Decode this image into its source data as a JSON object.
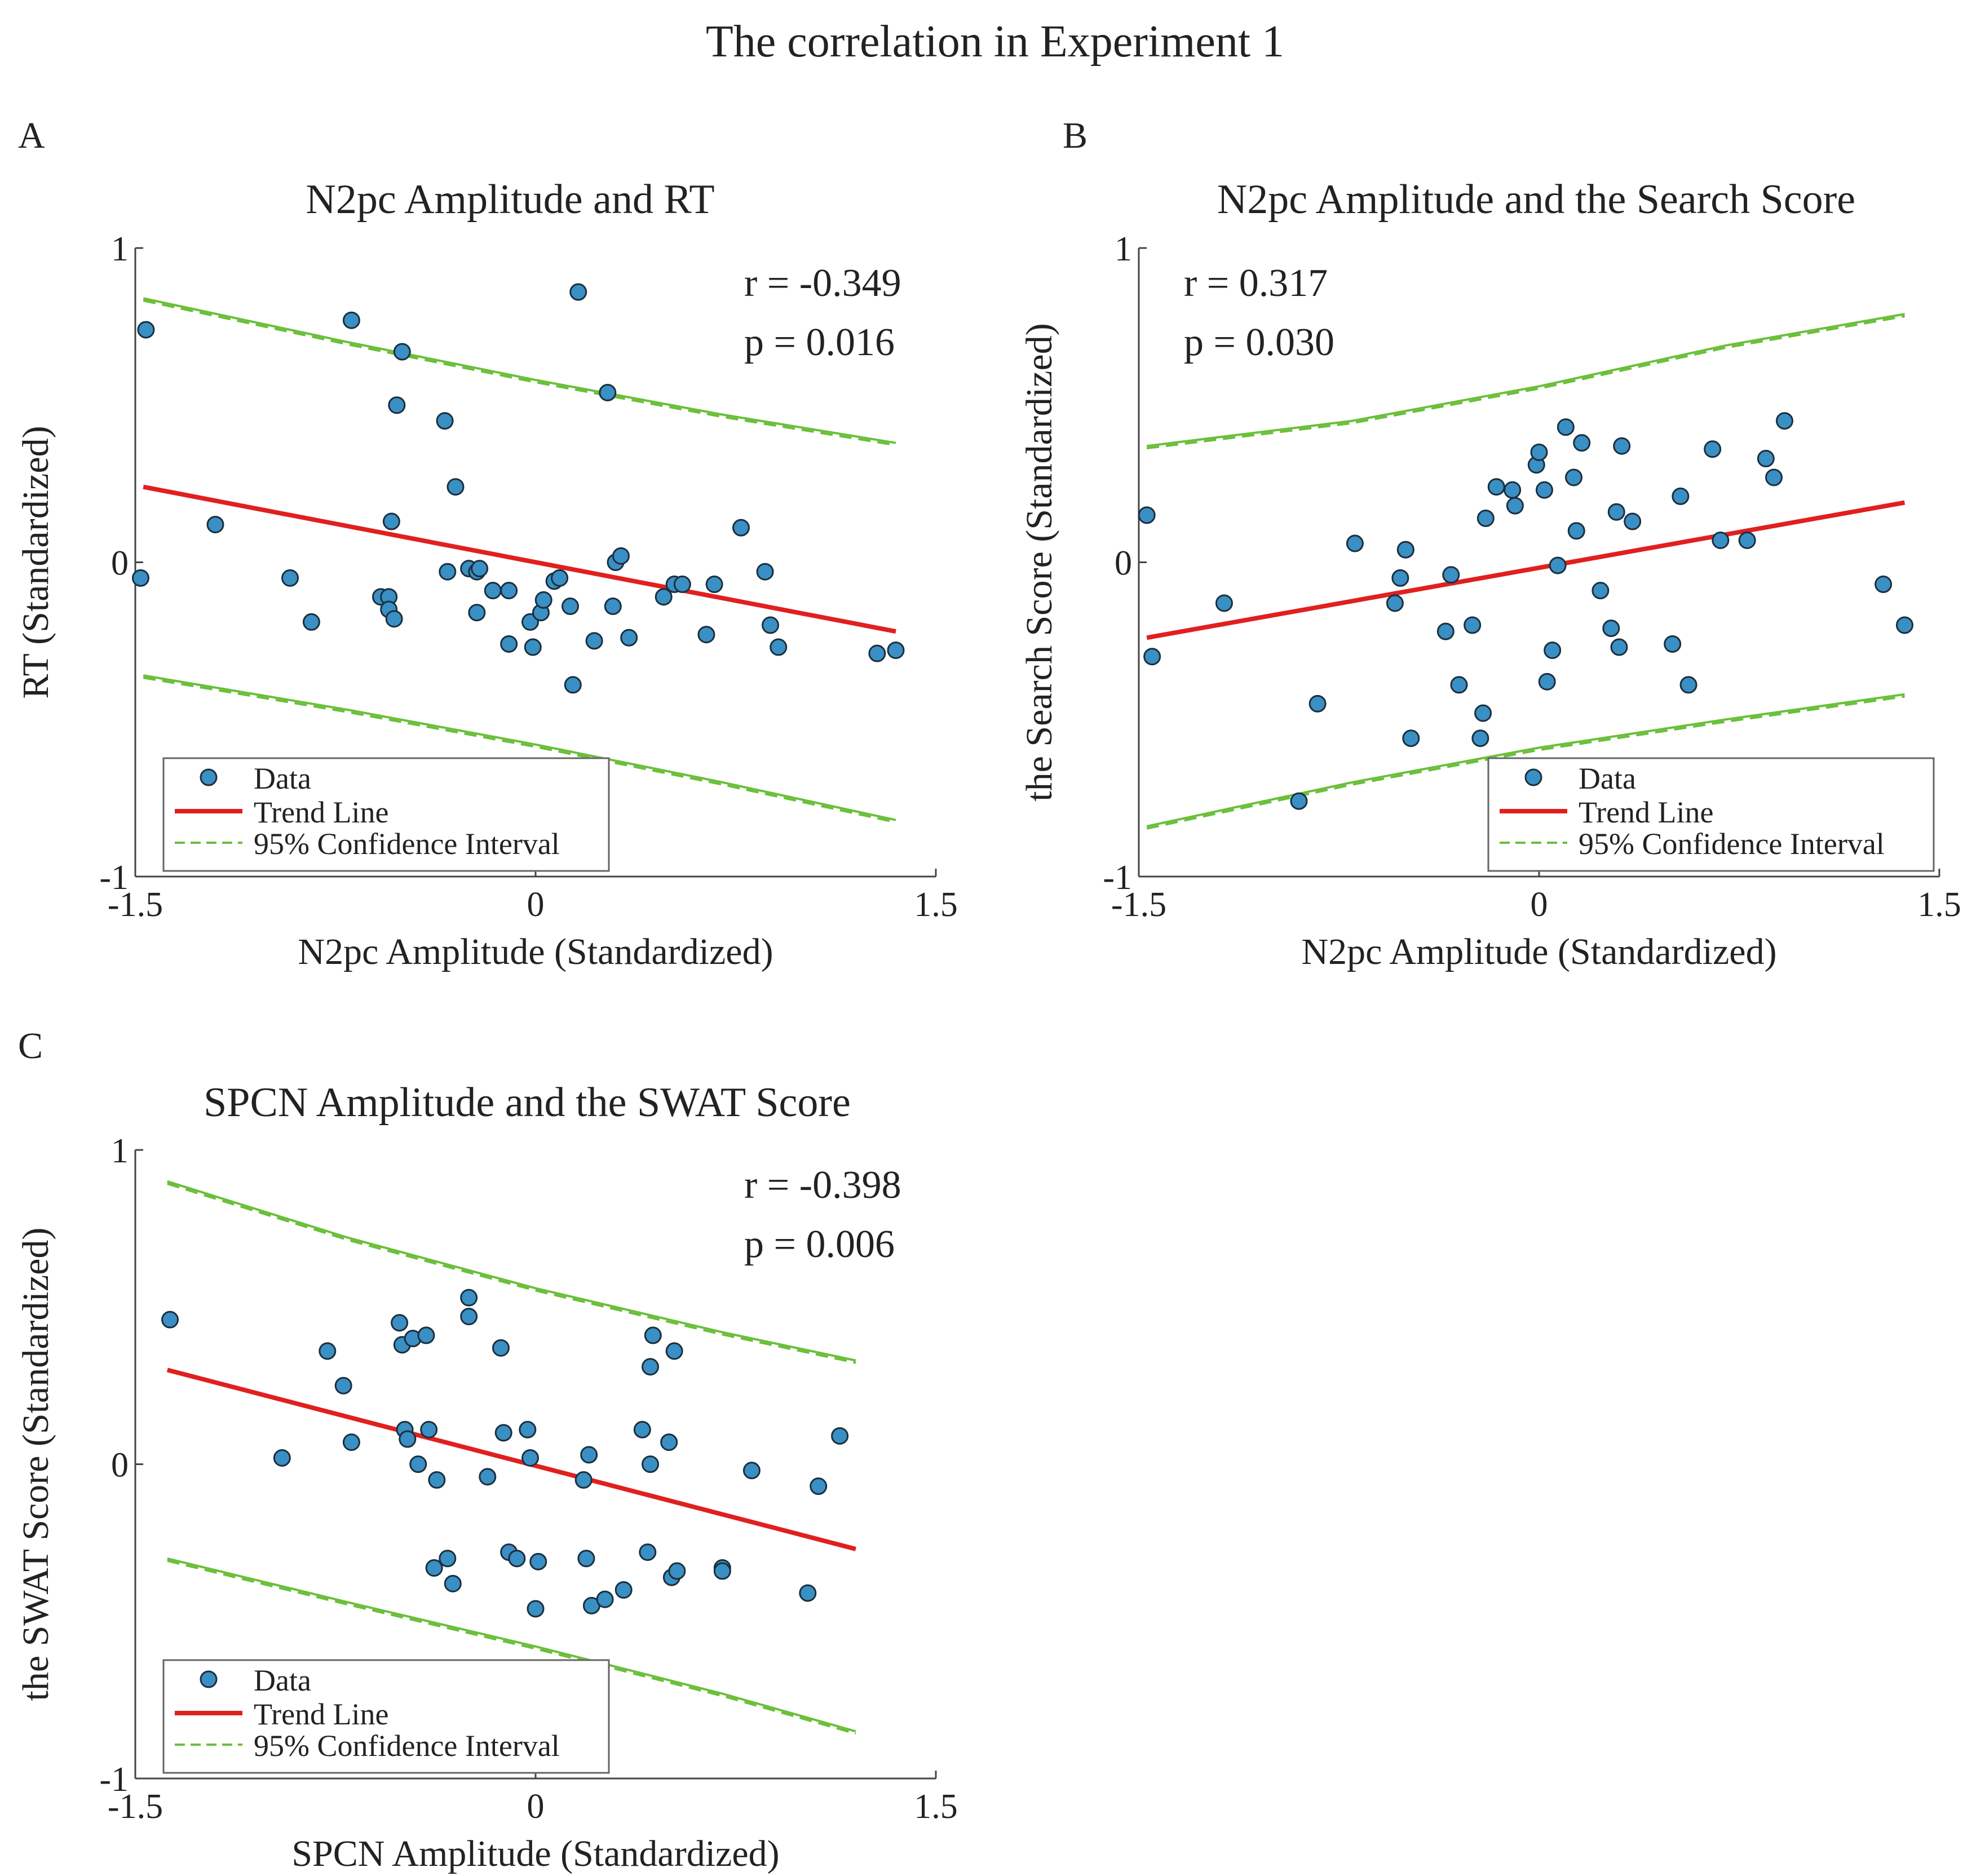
{
  "figure_title": "The correlation in Experiment 1",
  "legend_labels": [
    "Data",
    "Trend Line",
    "95% Confidence Interval"
  ],
  "colors": {
    "points": "#3a8fc4",
    "point_edge": "#1b2f3d",
    "trend": "#e0201f",
    "ci": "#6bbf3b",
    "axis": "#444444",
    "legend_border": "#666666"
  },
  "chart_data": [
    {
      "type": "scatter",
      "panel": "A",
      "title": "N2pc Amplitude and RT",
      "xlabel": "N2pc Amplitude (Standardized)",
      "ylabel": "RT (Standardized)",
      "xlim": [
        -1.5,
        1.5
      ],
      "ylim": [
        -1,
        1
      ],
      "xticks": [
        -1.5,
        0,
        1.5
      ],
      "xtick_labels": [
        "-1.5",
        "0",
        "1.5"
      ],
      "yticks": [
        -1,
        0,
        1
      ],
      "ytick_labels": [
        "-1",
        "0",
        "1"
      ],
      "stats": {
        "r": "r = -0.349",
        "p": "p = 0.016"
      },
      "legend_position": "bottom-left",
      "points": {
        "x": [
          -1.48,
          -1.46,
          -1.2,
          -0.92,
          -0.84,
          -0.69,
          -0.58,
          -0.55,
          -0.55,
          -0.54,
          -0.53,
          -0.52,
          -0.5,
          -0.34,
          -0.33,
          -0.3,
          -0.25,
          -0.22,
          -0.22,
          -0.21,
          -0.16,
          -0.1,
          -0.1,
          -0.02,
          -0.01,
          0.02,
          0.03,
          0.07,
          0.09,
          0.13,
          0.14,
          0.16,
          0.22,
          0.27,
          0.29,
          0.3,
          0.32,
          0.35,
          0.48,
          0.52,
          0.55,
          0.64,
          0.67,
          0.77,
          0.86,
          0.88,
          0.91,
          1.28,
          1.35
        ],
        "y": [
          -0.05,
          0.74,
          0.12,
          -0.05,
          -0.19,
          0.77,
          -0.11,
          -0.11,
          -0.15,
          0.13,
          -0.18,
          0.5,
          0.67,
          0.45,
          -0.03,
          0.24,
          -0.02,
          -0.03,
          -0.16,
          -0.02,
          -0.09,
          -0.09,
          -0.26,
          -0.19,
          -0.27,
          -0.16,
          -0.12,
          -0.06,
          -0.05,
          -0.14,
          -0.39,
          0.86,
          -0.25,
          0.54,
          -0.14,
          0.0,
          0.02,
          -0.24,
          -0.11,
          -0.07,
          -0.07,
          -0.23,
          -0.07,
          0.11,
          -0.03,
          -0.2,
          -0.27,
          -0.29,
          -0.28
        ]
      },
      "trend": {
        "x": [
          -1.47,
          1.35
        ],
        "y": [
          0.24,
          -0.22
        ]
      },
      "ci_upper": {
        "x": [
          -1.47,
          -0.7,
          0.0,
          0.7,
          1.35
        ],
        "y": [
          0.84,
          0.7,
          0.58,
          0.47,
          0.38
        ]
      },
      "ci_lower": {
        "x": [
          -1.47,
          -0.7,
          0.0,
          0.7,
          1.35
        ],
        "y": [
          -0.36,
          -0.47,
          -0.58,
          -0.7,
          -0.82
        ]
      }
    },
    {
      "type": "scatter",
      "panel": "B",
      "title": "N2pc Amplitude and the Search Score",
      "xlabel": "N2pc Amplitude (Standardized)",
      "ylabel": "the Search Score (Standardized)",
      "xlim": [
        -1.5,
        1.5
      ],
      "ylim": [
        -1,
        1
      ],
      "xticks": [
        -1.5,
        0,
        1.5
      ],
      "xtick_labels": [
        "-1.5",
        "0",
        "1.5"
      ],
      "yticks": [
        -1,
        0,
        1
      ],
      "ytick_labels": [
        "-1",
        "0",
        "1"
      ],
      "stats": {
        "r": "r = 0.317",
        "p": "p = 0.030"
      },
      "legend_position": "bottom-right",
      "points": {
        "x": [
          -1.47,
          -1.45,
          -1.18,
          -0.9,
          -0.83,
          -0.69,
          -0.54,
          -0.52,
          -0.5,
          -0.5,
          -0.48,
          -0.35,
          -0.33,
          -0.3,
          -0.25,
          -0.22,
          -0.21,
          -0.2,
          -0.16,
          -0.1,
          -0.09,
          -0.01,
          0.0,
          0.02,
          0.03,
          0.05,
          0.07,
          0.1,
          0.13,
          0.14,
          0.16,
          0.23,
          0.27,
          0.29,
          0.3,
          0.31,
          0.35,
          0.5,
          0.53,
          0.56,
          0.65,
          0.68,
          0.78,
          0.85,
          0.88,
          0.92,
          1.29,
          1.37
        ],
        "y": [
          0.15,
          -0.3,
          -0.13,
          -0.76,
          -0.45,
          0.06,
          -0.13,
          -0.05,
          0.04,
          0.04,
          -0.56,
          -0.22,
          -0.04,
          -0.39,
          -0.2,
          -0.56,
          -0.48,
          0.14,
          0.24,
          0.23,
          0.18,
          0.31,
          0.35,
          0.23,
          -0.38,
          -0.28,
          -0.01,
          0.43,
          0.27,
          0.1,
          0.38,
          -0.09,
          -0.21,
          0.16,
          -0.27,
          0.37,
          0.13,
          -0.26,
          0.21,
          -0.39,
          0.36,
          0.07,
          0.07,
          0.33,
          0.27,
          0.45,
          -0.07,
          -0.2
        ]
      },
      "trend": {
        "x": [
          -1.47,
          1.37
        ],
        "y": [
          -0.24,
          0.19
        ]
      },
      "ci_upper": {
        "x": [
          -1.47,
          -0.7,
          0.0,
          0.7,
          1.37
        ],
        "y": [
          0.37,
          0.45,
          0.56,
          0.69,
          0.79
        ]
      },
      "ci_lower": {
        "x": [
          -1.47,
          -0.7,
          0.0,
          0.7,
          1.37
        ],
        "y": [
          -0.84,
          -0.7,
          -0.59,
          -0.5,
          -0.42
        ]
      }
    },
    {
      "type": "scatter",
      "panel": "C",
      "title": "SPCN Amplitude and the SWAT Score",
      "xlabel": "SPCN Amplitude (Standardized)",
      "ylabel": "the SWAT Score (Standardized)",
      "xlim": [
        -1.5,
        1.5
      ],
      "ylim": [
        -1,
        1
      ],
      "xticks": [
        -1.5,
        0,
        1.5
      ],
      "xtick_labels": [
        "-1.5",
        "0",
        "1.5"
      ],
      "yticks": [
        -1,
        0,
        1
      ],
      "ytick_labels": [
        "-1",
        "0",
        "1"
      ],
      "stats": {
        "r": "r = -0.398",
        "p": "p = 0.006"
      },
      "legend_position": "bottom-left",
      "points": {
        "x": [
          -1.37,
          -0.95,
          -0.78,
          -0.72,
          -0.69,
          -0.51,
          -0.5,
          -0.49,
          -0.48,
          -0.46,
          -0.44,
          -0.41,
          -0.4,
          -0.38,
          -0.37,
          -0.33,
          -0.31,
          -0.25,
          -0.25,
          -0.18,
          -0.13,
          -0.12,
          -0.1,
          -0.07,
          -0.03,
          -0.02,
          0.0,
          0.01,
          0.18,
          0.19,
          0.2,
          0.21,
          0.26,
          0.33,
          0.4,
          0.42,
          0.43,
          0.43,
          0.44,
          0.5,
          0.51,
          0.52,
          0.53,
          0.7,
          0.7,
          0.81,
          1.02,
          1.06,
          1.14
        ],
        "y": [
          0.46,
          0.02,
          0.36,
          0.25,
          0.07,
          0.45,
          0.38,
          0.11,
          0.08,
          0.4,
          0.0,
          0.41,
          0.11,
          -0.33,
          -0.05,
          -0.3,
          -0.38,
          0.53,
          0.47,
          -0.04,
          0.37,
          0.1,
          -0.28,
          -0.3,
          0.11,
          0.02,
          -0.46,
          -0.31,
          -0.05,
          -0.3,
          0.03,
          -0.45,
          -0.43,
          -0.4,
          0.11,
          -0.28,
          0.0,
          0.31,
          0.41,
          0.07,
          -0.36,
          0.36,
          -0.34,
          -0.33,
          -0.34,
          -0.02,
          -0.41,
          -0.07,
          0.09
        ]
      },
      "trend": {
        "x": [
          -1.38,
          1.2
        ],
        "y": [
          0.3,
          -0.27
        ]
      },
      "ci_upper": {
        "x": [
          -1.38,
          -0.7,
          0.0,
          0.7,
          1.2
        ],
        "y": [
          0.9,
          0.72,
          0.56,
          0.42,
          0.33
        ]
      },
      "ci_lower": {
        "x": [
          -1.38,
          -0.7,
          0.0,
          0.7,
          1.2
        ],
        "y": [
          -0.3,
          -0.44,
          -0.58,
          -0.73,
          -0.85
        ]
      }
    }
  ]
}
